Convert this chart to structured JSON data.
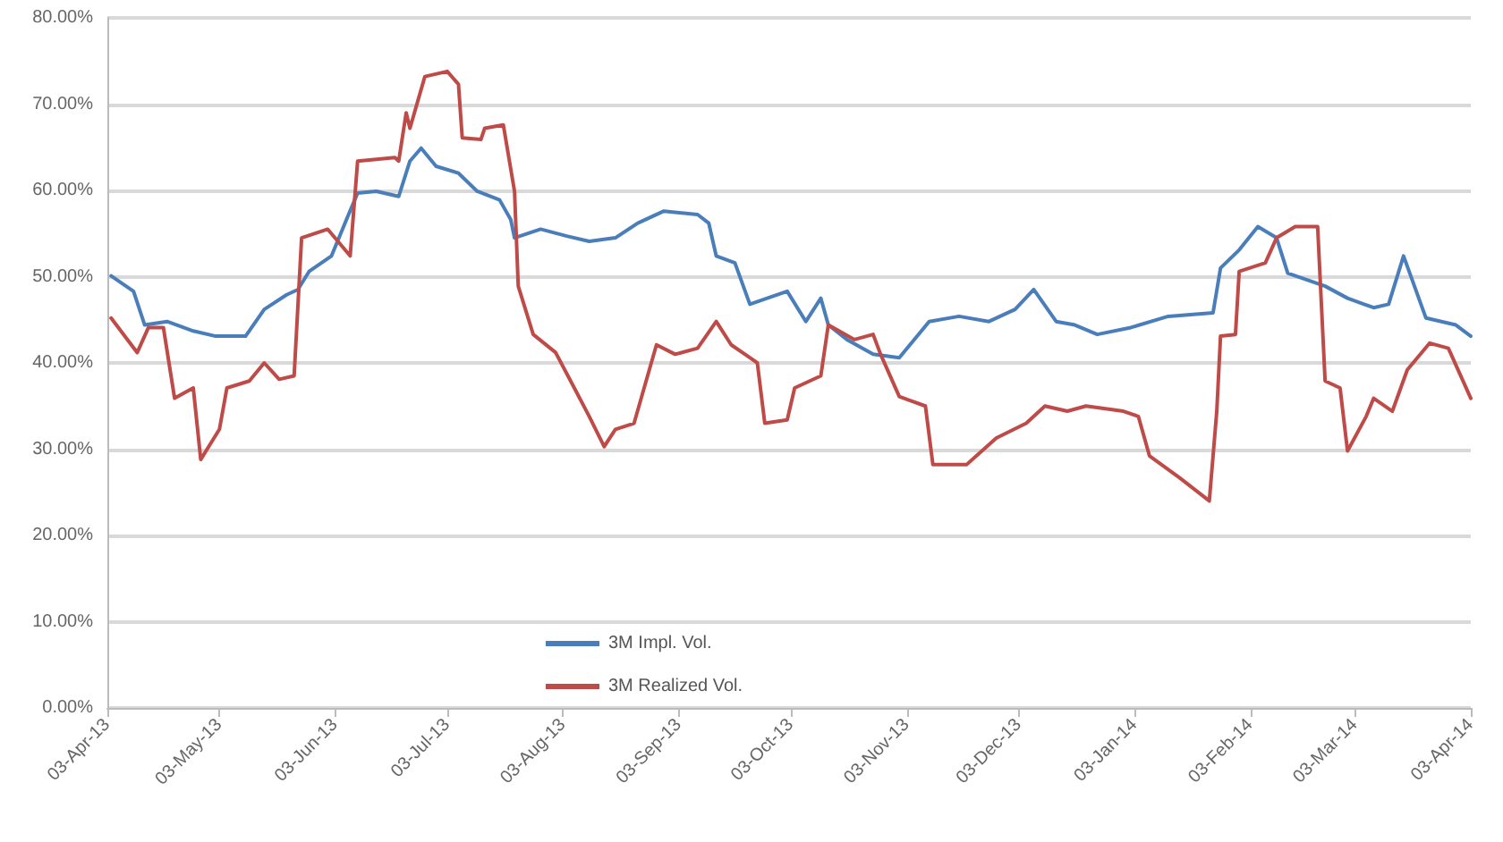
{
  "chart_data": {
    "type": "line",
    "marker": "none",
    "grid": "y",
    "legend": "bottom",
    "xlim": [
      "2013-04-03",
      "2014-04-03"
    ],
    "xticks": [
      {
        "value": "2013-04-03",
        "label": "03-Apr-13"
      },
      {
        "value": "2013-05-03",
        "label": "03-May-13"
      },
      {
        "value": "2013-06-03",
        "label": "03-Jun-13"
      },
      {
        "value": "2013-07-03",
        "label": "03-Jul-13"
      },
      {
        "value": "2013-08-03",
        "label": "03-Aug-13"
      },
      {
        "value": "2013-09-03",
        "label": "03-Sep-13"
      },
      {
        "value": "2013-10-03",
        "label": "03-Oct-13"
      },
      {
        "value": "2013-11-03",
        "label": "03-Nov-13"
      },
      {
        "value": "2013-12-03",
        "label": "03-Dec-13"
      },
      {
        "value": "2014-01-03",
        "label": "03-Jan-14"
      },
      {
        "value": "2014-02-03",
        "label": "03-Feb-14"
      },
      {
        "value": "2014-03-03",
        "label": "03-Mar-14"
      },
      {
        "value": "2014-04-03",
        "label": "03-Apr-14"
      }
    ],
    "ylim": [
      0,
      80
    ],
    "yticks": [
      {
        "value": 0,
        "label": "0.00%"
      },
      {
        "value": 10,
        "label": "10.00%"
      },
      {
        "value": 20,
        "label": "20.00%"
      },
      {
        "value": 30,
        "label": "30.00%"
      },
      {
        "value": 40,
        "label": "40.00%"
      },
      {
        "value": 50,
        "label": "50.00%"
      },
      {
        "value": 60,
        "label": "60.00%"
      },
      {
        "value": 70,
        "label": "70.00%"
      },
      {
        "value": 80,
        "label": "80.00%"
      }
    ],
    "series": [
      {
        "name": "3M Impl. Vol.",
        "color": "#4a7ebb",
        "x": [
          "2013-04-04",
          "2013-04-10",
          "2013-04-13",
          "2013-04-19",
          "2013-04-26",
          "2013-05-02",
          "2013-05-10",
          "2013-05-15",
          "2013-05-21",
          "2013-05-24",
          "2013-05-27",
          "2013-06-02",
          "2013-06-06",
          "2013-06-09",
          "2013-06-14",
          "2013-06-20",
          "2013-06-23",
          "2013-06-26",
          "2013-06-30",
          "2013-07-06",
          "2013-07-11",
          "2013-07-17",
          "2013-07-20",
          "2013-07-21",
          "2013-07-28",
          "2013-08-04",
          "2013-08-10",
          "2013-08-17",
          "2013-08-23",
          "2013-08-30",
          "2013-09-08",
          "2013-09-11",
          "2013-09-13",
          "2013-09-18",
          "2013-09-22",
          "2013-10-02",
          "2013-10-07",
          "2013-10-11",
          "2013-10-13",
          "2013-10-18",
          "2013-10-25",
          "2013-11-01",
          "2013-11-09",
          "2013-11-17",
          "2013-11-25",
          "2013-12-02",
          "2013-12-07",
          "2013-12-13",
          "2013-12-18",
          "2013-12-24",
          "2014-01-02",
          "2014-01-12",
          "2014-01-24",
          "2014-01-26",
          "2014-01-31",
          "2014-02-05",
          "2014-02-10",
          "2014-02-13",
          "2014-02-23",
          "2014-03-01",
          "2014-03-08",
          "2014-03-12",
          "2014-03-16",
          "2014-03-22",
          "2014-03-30",
          "2014-04-03"
        ],
        "values": [
          50.1,
          48.3,
          44.4,
          44.8,
          43.7,
          43.1,
          43.1,
          46.2,
          47.9,
          48.5,
          50.6,
          52.4,
          56.6,
          59.7,
          59.9,
          59.3,
          63.4,
          64.9,
          62.8,
          62.0,
          59.9,
          58.9,
          56.6,
          54.5,
          55.5,
          54.7,
          54.1,
          54.5,
          56.2,
          57.6,
          57.2,
          56.2,
          52.4,
          51.6,
          46.8,
          48.3,
          44.8,
          47.5,
          44.4,
          42.7,
          41.0,
          40.6,
          44.8,
          45.4,
          44.8,
          46.2,
          48.5,
          44.8,
          44.4,
          43.3,
          44.1,
          45.4,
          45.8,
          51.0,
          53.1,
          55.8,
          54.5,
          50.4,
          48.9,
          47.5,
          46.4,
          46.8,
          52.4,
          45.2,
          44.4,
          43.1
        ]
      },
      {
        "name": "3M Realized Vol.",
        "color": "#be4b48",
        "x": [
          "2013-04-04",
          "2013-04-11",
          "2013-04-14",
          "2013-04-18",
          "2013-04-21",
          "2013-04-26",
          "2013-04-28",
          "2013-05-03",
          "2013-05-05",
          "2013-05-11",
          "2013-05-15",
          "2013-05-19",
          "2013-05-23",
          "2013-05-25",
          "2013-06-01",
          "2013-06-07",
          "2013-06-09",
          "2013-06-19",
          "2013-06-20",
          "2013-06-22",
          "2013-06-23",
          "2013-06-27",
          "2013-07-03",
          "2013-07-06",
          "2013-07-07",
          "2013-07-12",
          "2013-07-13",
          "2013-07-18",
          "2013-07-21",
          "2013-07-22",
          "2013-07-26",
          "2013-08-01",
          "2013-08-06",
          "2013-08-10",
          "2013-08-14",
          "2013-08-17",
          "2013-08-22",
          "2013-08-28",
          "2013-09-02",
          "2013-09-08",
          "2013-09-13",
          "2013-09-17",
          "2013-09-22",
          "2013-09-24",
          "2013-09-26",
          "2013-10-02",
          "2013-10-04",
          "2013-10-11",
          "2013-10-13",
          "2013-10-20",
          "2013-10-25",
          "2013-10-27",
          "2013-11-01",
          "2013-11-08",
          "2013-11-10",
          "2013-11-19",
          "2013-11-27",
          "2013-12-05",
          "2013-12-10",
          "2013-12-16",
          "2013-12-21",
          "2013-12-31",
          "2014-01-04",
          "2014-01-07",
          "2014-01-15",
          "2014-01-23",
          "2014-01-25",
          "2014-01-26",
          "2014-01-30",
          "2014-01-31",
          "2014-02-07",
          "2014-02-10",
          "2014-02-15",
          "2014-02-21",
          "2014-02-23",
          "2014-02-27",
          "2014-03-01",
          "2014-03-06",
          "2014-03-08",
          "2014-03-13",
          "2014-03-17",
          "2014-03-23",
          "2014-03-28",
          "2014-04-03"
        ],
        "values": [
          45.2,
          41.2,
          44.1,
          44.1,
          35.9,
          37.1,
          28.8,
          32.3,
          37.1,
          37.9,
          40.0,
          38.1,
          38.5,
          54.5,
          55.5,
          52.4,
          63.4,
          63.8,
          63.4,
          69.0,
          67.2,
          73.2,
          73.8,
          72.3,
          66.1,
          65.9,
          67.2,
          67.6,
          59.9,
          48.9,
          43.3,
          41.2,
          37.1,
          33.8,
          30.3,
          32.3,
          33.0,
          42.1,
          41.0,
          41.7,
          44.8,
          42.1,
          40.6,
          40.0,
          33.0,
          33.4,
          37.1,
          38.5,
          44.4,
          42.7,
          43.3,
          41.0,
          36.1,
          35.0,
          28.2,
          28.2,
          31.3,
          33.0,
          35.0,
          34.4,
          35.0,
          34.4,
          33.8,
          29.2,
          26.7,
          24.0,
          34.4,
          43.1,
          43.3,
          50.6,
          51.6,
          54.5,
          55.8,
          55.8,
          37.9,
          37.1,
          29.8,
          33.8,
          35.9,
          34.4,
          39.2,
          42.3,
          41.7,
          35.9
        ]
      }
    ]
  }
}
